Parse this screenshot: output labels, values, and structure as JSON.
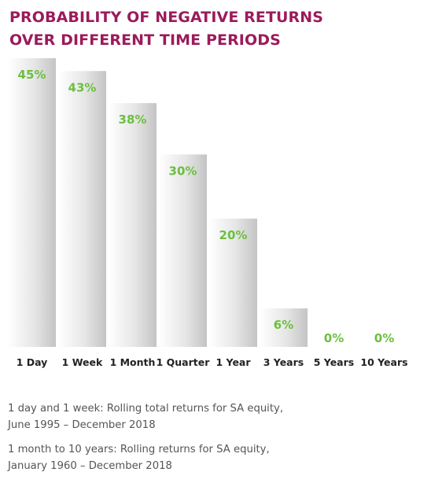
{
  "chart_data": {
    "type": "bar",
    "title_lines": [
      "PROBABILITY OF NEGATIVE RETURNS",
      "OVER DIFFERENT TIME PERIODS"
    ],
    "categories": [
      "1 Day",
      "1 Week",
      "1 Month",
      "1 Quarter",
      "1 Year",
      "3 Years",
      "5 Years",
      "10 Years"
    ],
    "values": [
      45,
      43,
      38,
      30,
      20,
      6,
      0,
      0
    ],
    "value_labels": [
      "45%",
      "43%",
      "38%",
      "30%",
      "20%",
      "6%",
      "0%",
      "0%"
    ],
    "unit": "%",
    "ylim": [
      0,
      45
    ],
    "grid": false,
    "legend": "none",
    "colors": {
      "title": "#9b1b5a",
      "value_label": "#6cbf3f",
      "category_label": "#222222",
      "bar_light": "#ffffff",
      "bar_dark": "#c4c4c4"
    }
  },
  "notes": [
    {
      "line1": "1 day and 1 week: Rolling total returns for SA equity,",
      "line2": "June 1995 – December 2018"
    },
    {
      "line1": "1 month to 10 years: Rolling returns for SA equity,",
      "line2": "January 1960 – December 2018"
    }
  ]
}
